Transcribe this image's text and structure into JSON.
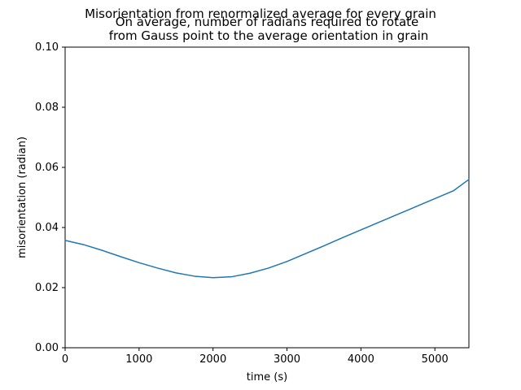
{
  "chart_data": {
    "type": "line",
    "suptitle": "Misorientation from renormalized average for every grain",
    "title_lines": [
      "On average, number of radians required to rotate",
      "from Gauss point to the average orientation in grain"
    ],
    "xlabel": "time (s)",
    "ylabel": "misorientation (radian)",
    "xlim": [
      0,
      5460
    ],
    "ylim": [
      0,
      0.1
    ],
    "xticks": [
      0,
      1000,
      2000,
      3000,
      4000,
      5000
    ],
    "xtick_labels": [
      "0",
      "1000",
      "2000",
      "3000",
      "4000",
      "5000"
    ],
    "yticks": [
      0,
      0.02,
      0.04,
      0.06,
      0.08,
      0.1
    ],
    "ytick_labels": [
      "0.00",
      "0.02",
      "0.04",
      "0.06",
      "0.08",
      "0.10"
    ],
    "grid": false,
    "legend": "none",
    "series": [
      {
        "color": "#1f77b4",
        "x": [
          0,
          250,
          500,
          750,
          1000,
          1250,
          1500,
          1750,
          2000,
          2250,
          2500,
          2750,
          3000,
          3250,
          3500,
          3750,
          4000,
          4250,
          4500,
          4750,
          5000,
          5250,
          5460
        ],
        "y": [
          0.0357,
          0.0343,
          0.0324,
          0.0303,
          0.0283,
          0.0265,
          0.0249,
          0.0238,
          0.0233,
          0.0236,
          0.0248,
          0.0265,
          0.0287,
          0.0313,
          0.0339,
          0.0366,
          0.0392,
          0.0418,
          0.0444,
          0.047,
          0.0496,
          0.0522,
          0.056
        ]
      }
    ]
  }
}
